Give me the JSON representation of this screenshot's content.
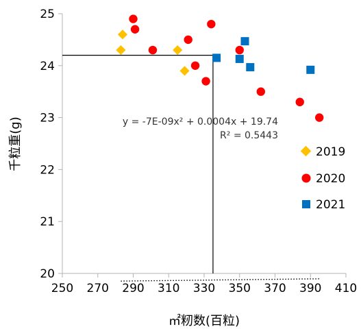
{
  "chart_data": {
    "type": "scatter",
    "xlabel": "㎡籾数(百粒)",
    "ylabel": "千粒重(g)",
    "xlim": [
      250,
      410
    ],
    "ylim": [
      20,
      25
    ],
    "x_ticks": [
      250,
      270,
      290,
      310,
      330,
      350,
      370,
      390,
      410
    ],
    "y_ticks": [
      20,
      21,
      22,
      23,
      24,
      25
    ],
    "x_tick_labels": [
      "250",
      "270",
      "290",
      "310",
      "330",
      "350",
      "370",
      "390",
      "410"
    ],
    "y_tick_labels": [
      "20",
      "21",
      "22",
      "23",
      "24",
      "25"
    ],
    "grid": false,
    "legend_position": "right",
    "series": [
      {
        "name": "2019",
        "marker": "diamond",
        "color": "#FFC000",
        "points": [
          [
            283,
            24.3
          ],
          [
            284,
            24.6
          ],
          [
            315,
            24.3
          ],
          [
            319,
            23.9
          ]
        ]
      },
      {
        "name": "2020",
        "marker": "circle",
        "color": "#FF0000",
        "points": [
          [
            290,
            24.9
          ],
          [
            291,
            24.7
          ],
          [
            301,
            24.3
          ],
          [
            321,
            24.5
          ],
          [
            325,
            24.0
          ],
          [
            331,
            23.7
          ],
          [
            334,
            24.8
          ],
          [
            350,
            24.3
          ],
          [
            362,
            23.5
          ],
          [
            384,
            23.3
          ],
          [
            395,
            23.0
          ]
        ]
      },
      {
        "name": "2021",
        "marker": "square",
        "color": "#0070C0",
        "points": [
          [
            337,
            24.15
          ],
          [
            350,
            24.13
          ],
          [
            353,
            24.47
          ],
          [
            356,
            23.97
          ],
          [
            390,
            23.92
          ]
        ]
      }
    ],
    "trendline": {
      "type": "polynomial",
      "coefficients": [
        -7e-09,
        0.0004,
        19.74
      ],
      "x_range": [
        283,
        395
      ],
      "equation_text": "y = -7E-09x² + 0.0004x + 19.74",
      "r2_text": "R² = 0.5443"
    },
    "reference_lines": {
      "vertical_x": 335,
      "horizontal_y": 24.2
    }
  }
}
